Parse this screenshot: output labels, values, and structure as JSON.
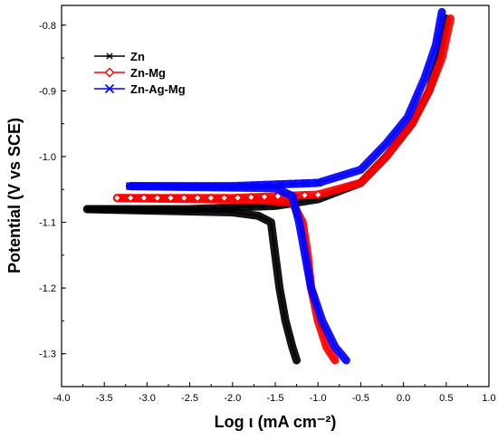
{
  "chart_data": {
    "type": "scatter",
    "title": "",
    "xlabel": "Log ι (mA cm⁻²)",
    "ylabel": "Potential (V vs SCE)",
    "xlim": [
      -4.0,
      1.0
    ],
    "ylim": [
      -1.35,
      -0.77
    ],
    "xticks": [
      "-4.0",
      "-3.5",
      "-3.0",
      "-2.5",
      "-2.0",
      "-1.5",
      "-1.0",
      "-0.5",
      "0.0",
      "0.5",
      "1.0"
    ],
    "yticks": [
      "-0.8",
      "-0.9",
      "-1.0",
      "-1.1",
      "-1.2",
      "-1.3"
    ],
    "grid": false,
    "legend_position": "top-left",
    "series": [
      {
        "name": "Zn",
        "color": "#000000",
        "marker": "asterisk",
        "anodic": [
          [
            -3.7,
            -1.08
          ],
          [
            -2.5,
            -1.08
          ],
          [
            -1.5,
            -1.075
          ],
          [
            -1.0,
            -1.065
          ],
          [
            -0.5,
            -1.04
          ],
          [
            -0.2,
            -1.0
          ],
          [
            0.1,
            -0.95
          ],
          [
            0.3,
            -0.9
          ],
          [
            0.42,
            -0.85
          ],
          [
            0.5,
            -0.79
          ]
        ],
        "cathodic": [
          [
            -3.7,
            -1.08
          ],
          [
            -2.0,
            -1.085
          ],
          [
            -1.7,
            -1.09
          ],
          [
            -1.55,
            -1.1
          ],
          [
            -1.5,
            -1.15
          ],
          [
            -1.45,
            -1.2
          ],
          [
            -1.38,
            -1.25
          ],
          [
            -1.3,
            -1.29
          ],
          [
            -1.25,
            -1.31
          ]
        ]
      },
      {
        "name": "Zn-Mg",
        "color": "#ff0000",
        "marker": "diamond",
        "anodic": [
          [
            -3.35,
            -1.063
          ],
          [
            -2.0,
            -1.063
          ],
          [
            -1.0,
            -1.058
          ],
          [
            -0.5,
            -1.04
          ],
          [
            -0.2,
            -1.0
          ],
          [
            0.1,
            -0.95
          ],
          [
            0.3,
            -0.9
          ],
          [
            0.45,
            -0.85
          ],
          [
            0.55,
            -0.79
          ]
        ],
        "cathodic": [
          [
            -3.35,
            -1.063
          ],
          [
            -1.7,
            -1.066
          ],
          [
            -1.3,
            -1.07
          ],
          [
            -1.18,
            -1.1
          ],
          [
            -1.12,
            -1.15
          ],
          [
            -1.08,
            -1.2
          ],
          [
            -1.0,
            -1.25
          ],
          [
            -0.9,
            -1.29
          ],
          [
            -0.8,
            -1.31
          ]
        ]
      },
      {
        "name": "Zn-Ag-Mg",
        "color": "#0000ff",
        "marker": "cross",
        "anodic": [
          [
            -3.2,
            -1.045
          ],
          [
            -2.0,
            -1.045
          ],
          [
            -1.0,
            -1.04
          ],
          [
            -0.5,
            -1.02
          ],
          [
            -0.2,
            -0.98
          ],
          [
            0.05,
            -0.94
          ],
          [
            0.25,
            -0.88
          ],
          [
            0.38,
            -0.83
          ],
          [
            0.45,
            -0.78
          ]
        ],
        "cathodic": [
          [
            -3.2,
            -1.045
          ],
          [
            -1.5,
            -1.048
          ],
          [
            -1.3,
            -1.06
          ],
          [
            -1.22,
            -1.1
          ],
          [
            -1.15,
            -1.15
          ],
          [
            -1.08,
            -1.2
          ],
          [
            -0.95,
            -1.25
          ],
          [
            -0.8,
            -1.29
          ],
          [
            -0.67,
            -1.31
          ]
        ]
      }
    ]
  }
}
